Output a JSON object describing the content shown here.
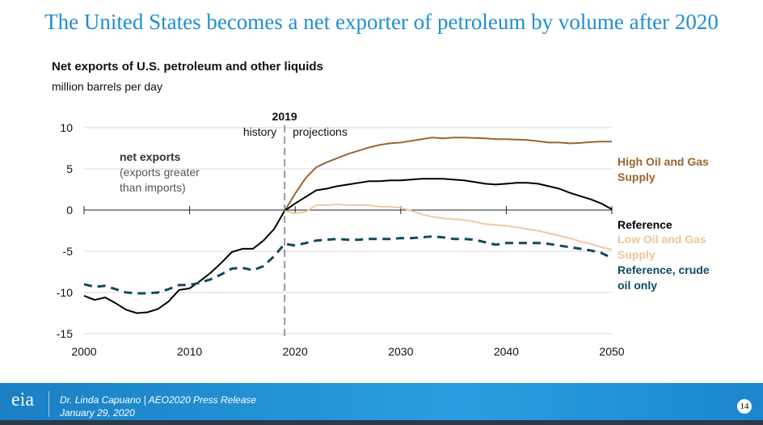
{
  "slide_title": "The United States becomes a net exporter of petroleum by volume after 2020",
  "chart_data": {
    "type": "line",
    "title": "Net exports of U.S. petroleum and other liquids",
    "ylabel": "million barrels per day",
    "xlim": [
      2000,
      2050
    ],
    "ylim": [
      -15,
      10
    ],
    "xticks": [
      "2000",
      "2010",
      "2020",
      "2030",
      "2040",
      "2050"
    ],
    "yticks": [
      "10",
      "5",
      "0",
      "-5",
      "-10",
      "-15"
    ],
    "divider": {
      "year": "2019",
      "left": "history",
      "right": "projections"
    },
    "annotation": {
      "line1": "net exports",
      "line2": "(exports greater",
      "line3": "than imports)"
    },
    "series": [
      {
        "name": "High Oil and Gas Supply",
        "label": [
          "High Oil and Gas",
          "Supply"
        ],
        "color": "#9b6433",
        "dashed": false,
        "start": 2019,
        "values": [
          -0.1,
          2.0,
          3.9,
          5.2,
          5.8,
          6.3,
          6.8,
          7.2,
          7.6,
          7.9,
          8.1,
          8.2,
          8.4,
          8.6,
          8.8,
          8.7,
          8.8,
          8.8,
          8.75,
          8.7,
          8.6,
          8.6,
          8.55,
          8.5,
          8.35,
          8.2,
          8.2,
          8.1,
          8.15,
          8.25,
          8.3,
          8.3
        ]
      },
      {
        "name": "Reference",
        "label": [
          "Reference"
        ],
        "color": "#000000",
        "dashed": false,
        "start": 2000,
        "values": [
          -10.4,
          -10.9,
          -10.6,
          -11.3,
          -12.1,
          -12.5,
          -12.4,
          -12.0,
          -11.1,
          -9.7,
          -9.5,
          -8.6,
          -7.6,
          -6.4,
          -5.1,
          -4.7,
          -4.7,
          -3.7,
          -2.3,
          -0.1,
          0.8,
          1.6,
          2.4,
          2.6,
          2.9,
          3.1,
          3.3,
          3.5,
          3.5,
          3.6,
          3.6,
          3.7,
          3.8,
          3.8,
          3.8,
          3.7,
          3.6,
          3.4,
          3.2,
          3.1,
          3.2,
          3.3,
          3.3,
          3.2,
          2.9,
          2.6,
          2.1,
          1.7,
          1.3,
          0.8,
          0.1
        ]
      },
      {
        "name": "Low Oil and Gas Supply",
        "label": [
          "Low Oil and Gas",
          "Supply"
        ],
        "color": "#f0c9a0",
        "dashed": false,
        "start": 2019,
        "values": [
          -0.1,
          -0.4,
          -0.2,
          0.6,
          0.6,
          0.7,
          0.6,
          0.6,
          0.6,
          0.4,
          0.4,
          0.3,
          -0.1,
          -0.5,
          -0.8,
          -1.0,
          -1.1,
          -1.2,
          -1.4,
          -1.7,
          -1.8,
          -1.9,
          -2.1,
          -2.3,
          -2.5,
          -2.8,
          -3.1,
          -3.4,
          -3.8,
          -4.1,
          -4.5,
          -4.8
        ]
      },
      {
        "name": "Reference, crude oil only",
        "label": [
          "Reference, crude",
          "oil only"
        ],
        "color": "#0e4a5f",
        "dashed": true,
        "start": 2000,
        "values": [
          -9.0,
          -9.3,
          -9.2,
          -9.6,
          -10.0,
          -10.1,
          -10.1,
          -10.0,
          -9.6,
          -9.1,
          -9.1,
          -8.8,
          -8.4,
          -7.8,
          -7.1,
          -7.0,
          -7.3,
          -6.8,
          -5.6,
          -4.1,
          -4.3,
          -4.0,
          -3.7,
          -3.6,
          -3.5,
          -3.6,
          -3.6,
          -3.5,
          -3.5,
          -3.5,
          -3.4,
          -3.4,
          -3.3,
          -3.2,
          -3.3,
          -3.5,
          -3.5,
          -3.6,
          -3.9,
          -4.2,
          -4.0,
          -4.0,
          -4.0,
          -4.0,
          -4.1,
          -4.3,
          -4.5,
          -4.7,
          -4.9,
          -5.2,
          -5.8
        ]
      }
    ]
  },
  "footer": {
    "logo": "eia",
    "line1": "Dr. Linda Capuano | AEO2020 Press Release",
    "line2": "January 29, 2020",
    "page": "14"
  }
}
